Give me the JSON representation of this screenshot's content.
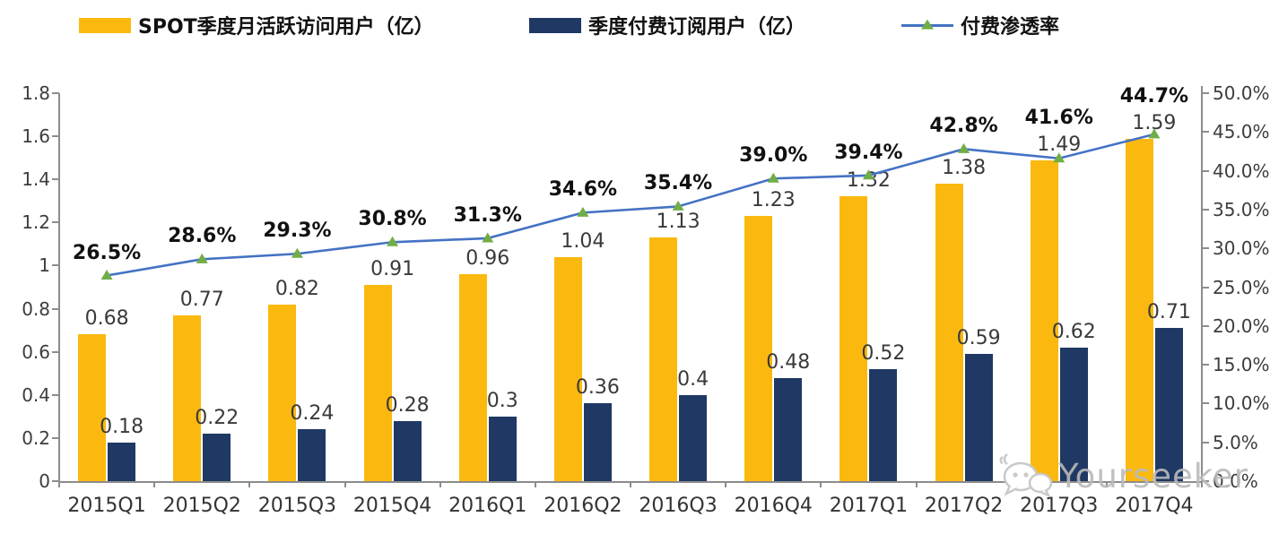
{
  "watermark": {
    "text": "Yourseeker",
    "icon": "wechat-icon"
  },
  "chart_data": {
    "type": "bar",
    "combo": "grouped bars (left axis) + line with triangle markers (right axis)",
    "title": "",
    "legend_position": "top",
    "grid": false,
    "categories": [
      "2015Q1",
      "2015Q2",
      "2015Q3",
      "2015Q4",
      "2016Q1",
      "2016Q2",
      "2016Q3",
      "2016Q4",
      "2017Q1",
      "2017Q2",
      "2017Q3",
      "2017Q4"
    ],
    "series": [
      {
        "name": "SPOT季度月活跃访问用户（亿）",
        "type": "bar",
        "axis": "left",
        "color": "#FBB90F",
        "values": [
          0.68,
          0.77,
          0.82,
          0.91,
          0.96,
          1.04,
          1.13,
          1.23,
          1.32,
          1.38,
          1.49,
          1.59
        ],
        "labels": [
          "0.68",
          "0.77",
          "0.82",
          "0.91",
          "0.96",
          "1.04",
          "1.13",
          "1.23",
          "1.32",
          "1.38",
          "1.49",
          "1.59"
        ]
      },
      {
        "name": "季度付费订阅用户（亿）",
        "type": "bar",
        "axis": "left",
        "color": "#1F3864",
        "values": [
          0.18,
          0.22,
          0.24,
          0.28,
          0.3,
          0.36,
          0.4,
          0.48,
          0.52,
          0.59,
          0.62,
          0.71
        ],
        "labels": [
          "0.18",
          "0.22",
          "0.24",
          "0.28",
          "0.3",
          "0.36",
          "0.4",
          "0.48",
          "0.52",
          "0.59",
          "0.62",
          "0.71"
        ]
      },
      {
        "name": "付费渗透率",
        "type": "line",
        "axis": "right",
        "color": "#4472C4",
        "marker": "triangle",
        "marker_color": "#70AD47",
        "values": [
          26.5,
          28.6,
          29.3,
          30.8,
          31.3,
          34.6,
          35.4,
          39.0,
          39.4,
          42.8,
          41.6,
          44.7
        ],
        "labels": [
          "26.5%",
          "28.6%",
          "29.3%",
          "30.8%",
          "31.3%",
          "34.6%",
          "35.4%",
          "39.0%",
          "39.4%",
          "42.8%",
          "41.6%",
          "44.7%"
        ]
      }
    ],
    "left_axis": {
      "min": 0,
      "max": 1.8,
      "tick_step": 0.2,
      "tick_labels": [
        "0",
        "0.2",
        "0.4",
        "0.6",
        "0.8",
        "1",
        "1.2",
        "1.4",
        "1.6",
        "1.8"
      ]
    },
    "right_axis": {
      "min": 0,
      "max": 50,
      "tick_step": 5,
      "tick_labels": [
        "0.0%",
        "5.0%",
        "10.0%",
        "15.0%",
        "20.0%",
        "25.0%",
        "30.0%",
        "35.0%",
        "40.0%",
        "45.0%",
        "50.0%"
      ]
    }
  }
}
